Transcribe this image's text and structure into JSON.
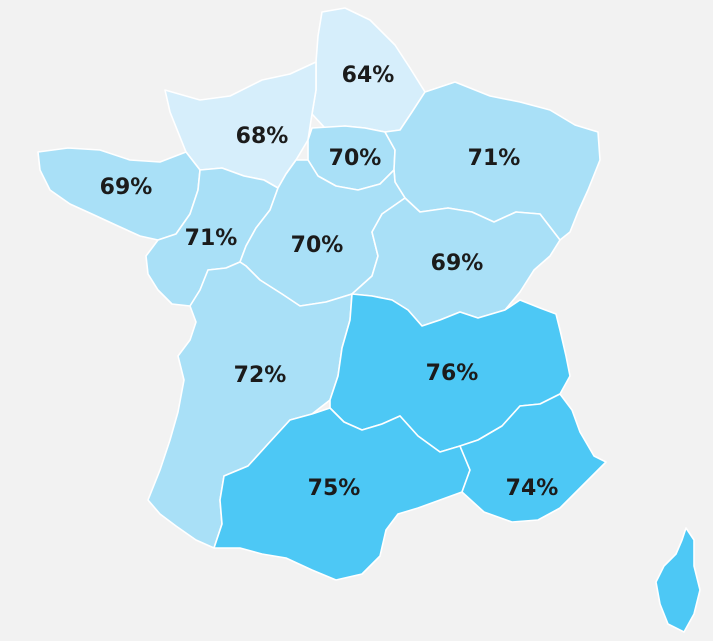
{
  "legend_colors": {
    "light": "#d6eefb",
    "medium": "#a9e0f7",
    "strong": "#4dc8f5"
  },
  "regions": [
    {
      "key": "hauts-de-france",
      "label": "64%",
      "value": 64,
      "tone": "light"
    },
    {
      "key": "normandie",
      "label": "68%",
      "value": 68,
      "tone": "light"
    },
    {
      "key": "ile-de-france",
      "label": "70%",
      "value": 70,
      "tone": "medium"
    },
    {
      "key": "grand-est",
      "label": "71%",
      "value": 71,
      "tone": "medium"
    },
    {
      "key": "bretagne",
      "label": "69%",
      "value": 69,
      "tone": "medium"
    },
    {
      "key": "pays-de-la-loire",
      "label": "71%",
      "value": 71,
      "tone": "medium"
    },
    {
      "key": "centre-val-de-loire",
      "label": "70%",
      "value": 70,
      "tone": "medium"
    },
    {
      "key": "bourgogne-franche-comte",
      "label": "69%",
      "value": 69,
      "tone": "medium"
    },
    {
      "key": "nouvelle-aquitaine",
      "label": "72%",
      "value": 72,
      "tone": "medium"
    },
    {
      "key": "auvergne-rhone-alpes",
      "label": "76%",
      "value": 76,
      "tone": "strong"
    },
    {
      "key": "occitanie",
      "label": "75%",
      "value": 75,
      "tone": "strong"
    },
    {
      "key": "provence-alpes-cote-d-azur",
      "label": "74%",
      "value": 74,
      "tone": "strong"
    },
    {
      "key": "corse",
      "label": "",
      "value": null,
      "tone": "strong"
    }
  ]
}
